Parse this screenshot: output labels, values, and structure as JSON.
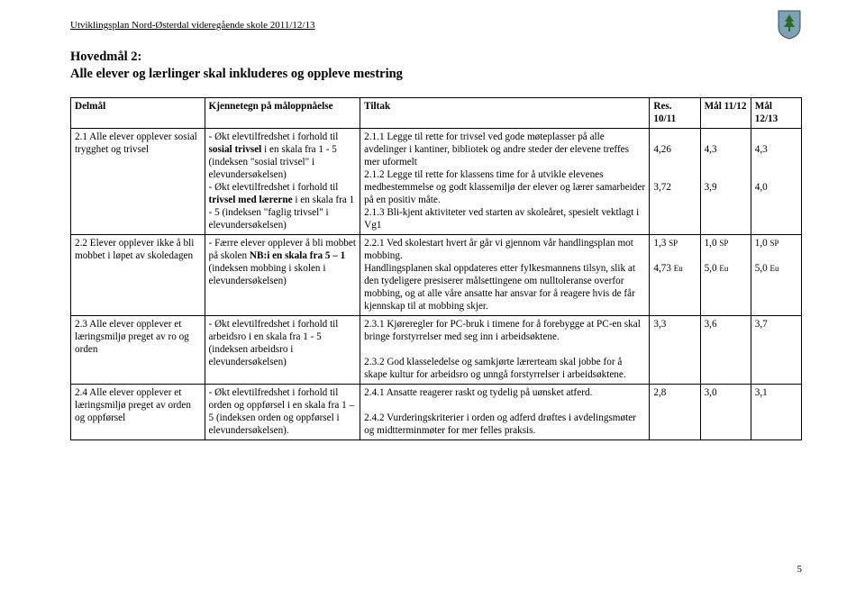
{
  "header": "Utviklingsplan Nord-Østerdal videregående skole 2011/12/13",
  "title1": "Hovedmål 2:",
  "title2": "Alle elever og lærlinger skal inkluderes og oppleve mestring",
  "pageNumber": "5",
  "logo": {
    "shield_fill": "#7fa1b3",
    "shield_stroke": "#2f4f5f",
    "tree_fill": "#2a6b2a",
    "trunk_fill": "#6b4a2a"
  },
  "cols": {
    "delmal": "Delmål",
    "kjenn": "Kjennetegn på måloppnåelse",
    "tiltak": "Tiltak",
    "res": "Res. 10/11",
    "mal1": "Mål 11/12",
    "mal2": "Mål 12/13"
  },
  "rows": [
    {
      "delmal": "2.1 Alle elever opplever sosial trygghet og trivsel",
      "kjenn_html": "- Økt elevtilfredshet i forhold til <b>sosial trivsel</b> i en skala fra 1 - 5 (indeksen \"sosial trivsel\" i elevundersøkelsen)<br>- Økt elevtilfredshet i forhold til <b>trivsel med lærerne</b> i en skala fra 1 - 5 (indeksen \"faglig trivsel\" i elevundersøkelsen)",
      "tiltak_html": "2.1.1 Legge til rette for trivsel ved gode møteplasser på alle avdelinger i kantiner, bibliotek og andre steder der elevene treffes mer uformelt<br>2.1.2 Legge til rette for klassens time for å utvikle elevenes medbestemmelse og godt klassemiljø der elever og lærer samarbeider på en positiv måte.<br>2.1.3 Bli-kjent aktiviteter ved starten av skoleåret, spesielt vektlagt i Vg1",
      "res": "<br>4,26<br><br><br>3,72",
      "mal1": "<br>4,3<br><br><br>3,9",
      "mal2": "<br>4,3<br><br><br>4,0"
    },
    {
      "delmal": "2.2 Elever opplever ikke å bli mobbet i løpet av skoledagen",
      "kjenn_html": "- Færre elever opplever å bli mobbet på skolen <b>NB:i en skala fra 5 – 1</b> (indeksen mobbing i skolen i elevundersøkelsen)",
      "tiltak_html": "2.2.1 Ved skolestart hvert år går vi gjennom vår handlingsplan mot mobbing.<br>Handlingsplanen skal oppdateres etter fylkesmannens tilsyn, slik at den tydeligere presiserer målsettingene om nulltoleranse overfor mobbing, og at alle våre ansatte har ansvar for å reagere hvis de får kjennskap til at mobbing skjer.",
      "res": "1,3 <span class=\"sm\">SP</span><br><br>4,73 <span class=\"sm\">Eu</span>",
      "mal1": "1,0 <span class=\"sm\">SP</span><br><br>5,0 <span class=\"sm\">Eu</span>",
      "mal2": "1,0 <span class=\"sm\">SP</span><br><br>5,0 <span class=\"sm\">Eu</span>"
    },
    {
      "delmal": "2.3 Alle elever opplever et læringsmiljø preget av ro og orden",
      "kjenn_html": "- Økt elevtilfredshet i forhold til arbeidsro i en skala fra 1 - 5 (indeksen arbeidsro i elevundersøkelsen)",
      "tiltak_html": "2.3.1 Kjøreregler for PC-bruk i timene for å forebygge at PC-en skal bringe forstyrrelser med seg inn i arbeidsøktene.<br><br>2.3.2 God klasseledelse og samkjørte lærerteam skal jobbe for å skape kultur for arbeidsro og unngå forstyrrelser i arbeidsøktene.",
      "res": "3,3",
      "mal1": "3,6",
      "mal2": "3,7"
    },
    {
      "delmal": "2.4 Alle elever opplever et læringsmiljø preget av orden og oppførsel",
      "kjenn_html": "- Økt elevtilfredshet i forhold til orden og oppførsel i en skala fra 1 – 5 (indeksen orden og oppførsel i elevundersøkelsen).",
      "tiltak_html": "2.4.1 Ansatte reagerer raskt og tydelig på uønsket atferd.<br><br>2.4.2 Vurderingskriterier i orden og adferd drøftes i avdelingsmøter og midtterminmøter for mer felles praksis.",
      "res": "2,8",
      "mal1": "3,0",
      "mal2": "3,1"
    }
  ]
}
